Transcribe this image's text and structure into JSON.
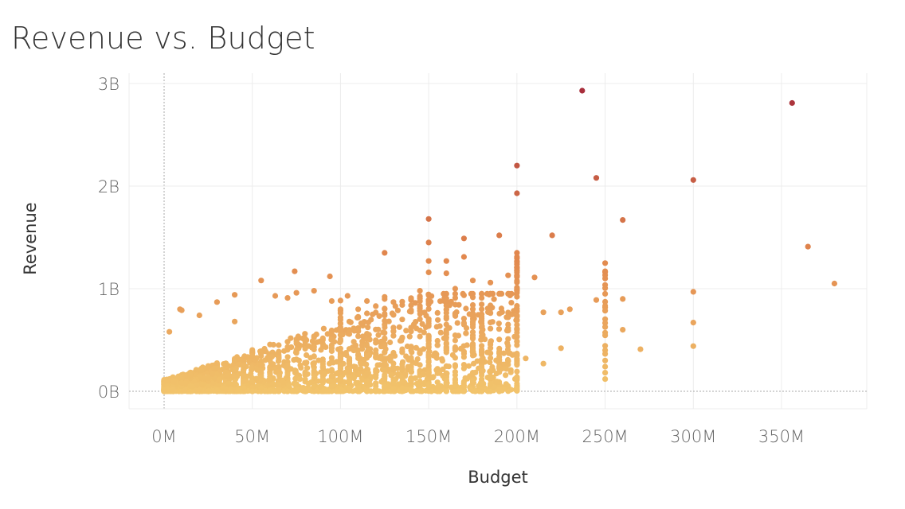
{
  "title": "Revenue vs. Budget",
  "colors": {
    "low": "#f2c46c",
    "mid": "#e1864d",
    "high": "#a52a3a",
    "grid": "#ececec",
    "zero_line": "#aaaaaa"
  },
  "chart_data": {
    "type": "scatter",
    "title": "Revenue vs. Budget",
    "xlabel": "Budget",
    "ylabel": "Revenue",
    "x_unit": "M",
    "y_unit": "B",
    "xlim": [
      -20,
      400
    ],
    "ylim": [
      -0.17,
      3.04
    ],
    "x_ticks": [
      0,
      50,
      100,
      150,
      200,
      250,
      300,
      350
    ],
    "x_tick_labels": [
      "0M",
      "50M",
      "100M",
      "150M",
      "200M",
      "250M",
      "300M",
      "350M"
    ],
    "y_ticks": [
      0,
      1,
      2,
      3
    ],
    "y_tick_labels": [
      "0B",
      "1B",
      "2B",
      "3B"
    ],
    "grid": true,
    "legend": "none",
    "color_encoding": "revenue",
    "points": [
      [
        237,
        2.93
      ],
      [
        356,
        2.81
      ],
      [
        200,
        2.2
      ],
      [
        245,
        2.08
      ],
      [
        300,
        2.06
      ],
      [
        200,
        1.93
      ],
      [
        260,
        1.67
      ],
      [
        150,
        1.68
      ],
      [
        220,
        1.52
      ],
      [
        190,
        1.52
      ],
      [
        170,
        1.49
      ],
      [
        150,
        1.45
      ],
      [
        365,
        1.41
      ],
      [
        200,
        1.35
      ],
      [
        125,
        1.35
      ],
      [
        160,
        1.27
      ],
      [
        170,
        1.31
      ],
      [
        150,
        1.27
      ],
      [
        200,
        1.31
      ],
      [
        250,
        1.25
      ],
      [
        175,
        1.08
      ],
      [
        195,
        1.13
      ],
      [
        150,
        1.16
      ],
      [
        160,
        1.15
      ],
      [
        210,
        1.11
      ],
      [
        200,
        1.21
      ],
      [
        250,
        1.17
      ],
      [
        380,
        1.05
      ],
      [
        250,
        1.1
      ],
      [
        300,
        0.97
      ],
      [
        260,
        0.9
      ],
      [
        245,
        0.89
      ],
      [
        250,
        0.95
      ],
      [
        230,
        0.8
      ],
      [
        225,
        0.77
      ],
      [
        215,
        0.77
      ],
      [
        260,
        0.6
      ],
      [
        300,
        0.67
      ],
      [
        250,
        0.4
      ],
      [
        300,
        0.44
      ],
      [
        270,
        0.41
      ],
      [
        225,
        0.42
      ],
      [
        250,
        0.3
      ],
      [
        215,
        0.27
      ],
      [
        205,
        0.32
      ],
      [
        190,
        0.02
      ],
      [
        160,
        0.0
      ],
      [
        140,
        0.1
      ],
      [
        74,
        1.17
      ],
      [
        55,
        1.08
      ],
      [
        94,
        1.12
      ],
      [
        104,
        0.93
      ],
      [
        125,
        0.92
      ],
      [
        85,
        0.98
      ],
      [
        63,
        0.93
      ],
      [
        75,
        0.96
      ],
      [
        140,
        0.9
      ],
      [
        130,
        0.87
      ],
      [
        40,
        0.94
      ],
      [
        10,
        0.79
      ],
      [
        30,
        0.87
      ],
      [
        9,
        0.8
      ],
      [
        95,
        0.88
      ],
      [
        70,
        0.91
      ],
      [
        115,
        0.88
      ],
      [
        180,
        0.95
      ],
      [
        185,
        1.06
      ],
      [
        165,
        1.0
      ],
      [
        145,
        0.98
      ],
      [
        3,
        0.58
      ],
      [
        40,
        0.68
      ],
      [
        20,
        0.74
      ],
      [
        110,
        0.8
      ],
      [
        120,
        0.83
      ],
      [
        100,
        0.8
      ]
    ]
  }
}
